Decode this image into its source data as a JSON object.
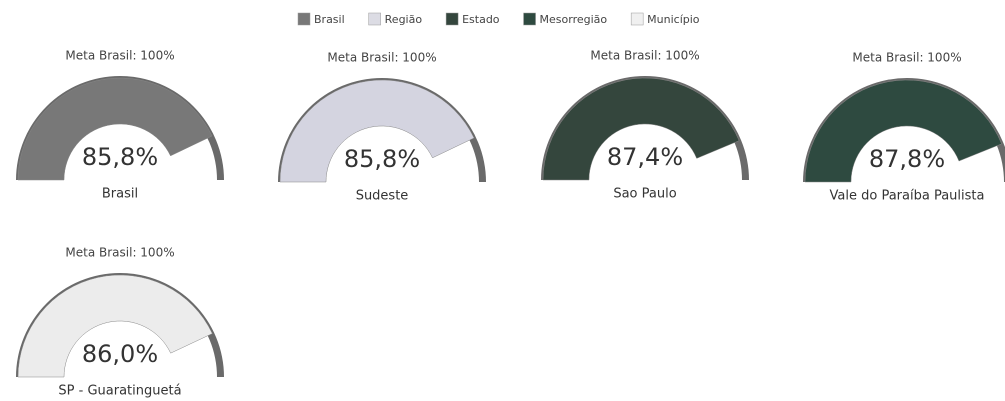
{
  "legend": [
    {
      "name": "Brasil",
      "color": "#787878"
    },
    {
      "name": "Região",
      "color": "#dcdce4"
    },
    {
      "name": "Estado",
      "color": "#34463d"
    },
    {
      "name": "Mesorregião",
      "color": "#2e4a40"
    },
    {
      "name": "Município",
      "color": "#f0f0f0"
    }
  ],
  "chart_data": [
    {
      "type": "gauge",
      "title": "Meta Brasil: 100%",
      "label": "Brasil",
      "values": [
        85.8
      ],
      "value_labels": [
        "85,8%"
      ],
      "color": "#787878",
      "ylim": [
        0,
        100
      ]
    },
    {
      "type": "gauge",
      "title": "Meta Brasil: 100%",
      "label": "Sudeste",
      "values": [
        85.8
      ],
      "value_labels": [
        "85,8%"
      ],
      "color": "#d4d4e0",
      "ylim": [
        0,
        100
      ]
    },
    {
      "type": "gauge",
      "title": "Meta Brasil: 100%",
      "label": "Sao Paulo",
      "values": [
        87.4
      ],
      "value_labels": [
        "87,4%"
      ],
      "color": "#34463d",
      "ylim": [
        0,
        100
      ]
    },
    {
      "type": "gauge",
      "title": "Meta Brasil: 100%",
      "label": "Vale do Paraíba Paulista",
      "values": [
        87.8
      ],
      "value_labels": [
        "87,8%"
      ],
      "color": "#2e4a40",
      "ylim": [
        0,
        100
      ]
    },
    {
      "type": "gauge",
      "title": "Meta Brasil: 100%",
      "label": "SP - Guaratinguetá",
      "values": [
        86.0
      ],
      "value_labels": [
        "86,0%"
      ],
      "color": "#ececec",
      "ylim": [
        0,
        100
      ]
    }
  ]
}
